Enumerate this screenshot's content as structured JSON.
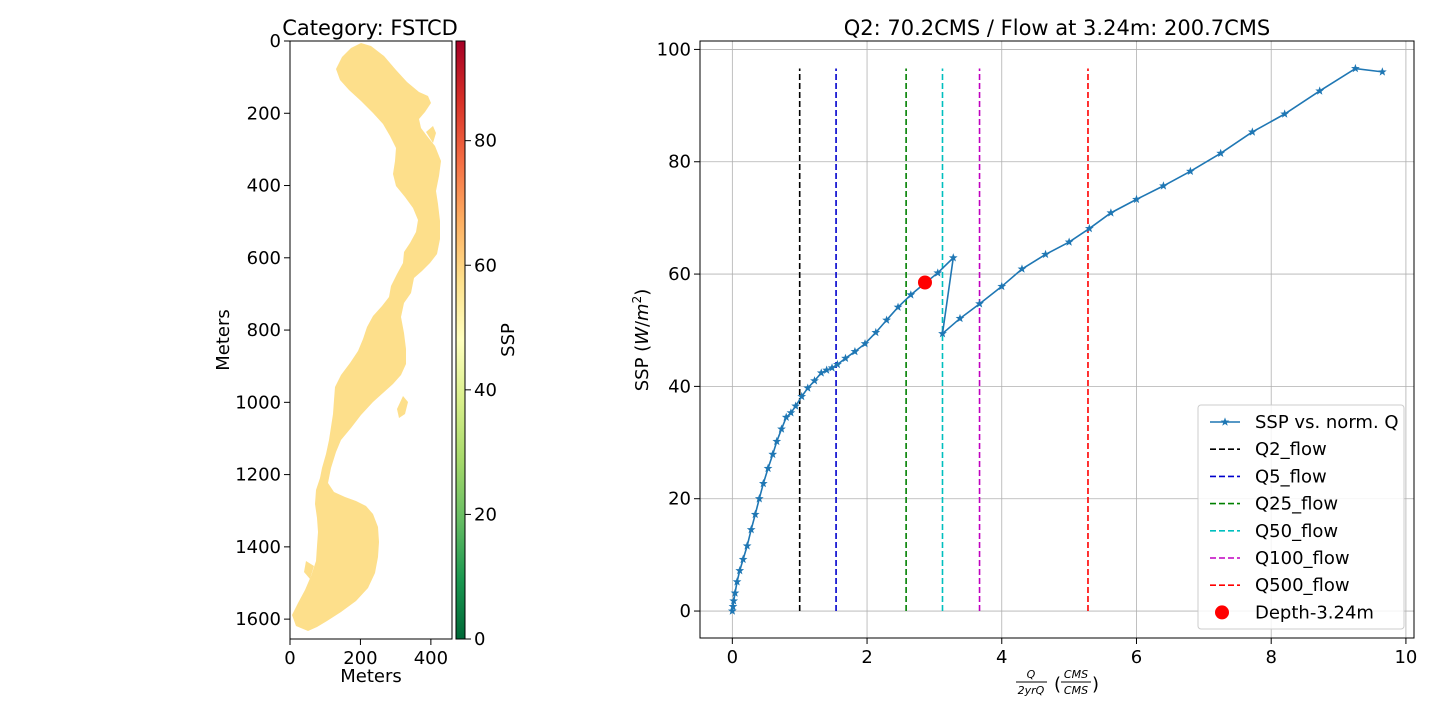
{
  "chart_data": [
    {
      "type": "heatmap",
      "title": "Category: FSTCD",
      "xlabel": "Meters",
      "ylabel": "Meters",
      "xlim": [
        0,
        460
      ],
      "ylim": [
        1655,
        0
      ],
      "x_ticks": [
        0,
        200,
        400
      ],
      "y_ticks": [
        0,
        200,
        400,
        600,
        800,
        1000,
        1200,
        1400,
        1600
      ],
      "colorbar": {
        "label": "SSP",
        "colormap": "RdYlGn_r",
        "range": [
          0,
          96
        ],
        "ticks": [
          0,
          20,
          40,
          60,
          80
        ],
        "stops": [
          "#006837",
          "#1a9850",
          "#66bd63",
          "#a6d96a",
          "#d9ef8b",
          "#ffffbf",
          "#fee08b",
          "#fdae61",
          "#f46d43",
          "#d73027",
          "#a50026"
        ]
      },
      "fill_value": 58.3,
      "fill_color": "#fddf8b",
      "grid": false
    },
    {
      "type": "line",
      "title": "Q2: 70.2CMS / Flow at 3.24m: 200.7CMS",
      "xlabel": "Q/2yrQ (CMS/CMS)",
      "ylabel": "SSP (W/m2)",
      "xlim": [
        -0.48,
        10.12
      ],
      "ylim": [
        -4.8,
        101.5
      ],
      "x_ticks": [
        0,
        2,
        4,
        6,
        8,
        10
      ],
      "y_ticks": [
        0,
        20,
        40,
        60,
        80,
        100
      ],
      "grid": true,
      "legend_position": "lower-right",
      "series": [
        {
          "name": "SSP vs. norm. Q",
          "color": "#1f77b4",
          "marker": "star",
          "x": [
            0.0,
            0.01,
            0.02,
            0.04,
            0.07,
            0.11,
            0.16,
            0.22,
            0.28,
            0.34,
            0.4,
            0.46,
            0.53,
            0.6,
            0.66,
            0.73,
            0.8,
            0.87,
            0.94,
            1.03,
            1.12,
            1.22,
            1.32,
            1.4,
            1.48,
            1.56,
            1.68,
            1.82,
            1.97,
            2.13,
            2.29,
            2.46,
            2.65,
            2.85,
            3.05,
            3.28,
            3.12,
            3.38,
            3.67,
            4.0,
            4.3,
            4.65,
            5.0,
            5.3,
            5.62,
            6.0,
            6.4,
            6.8,
            7.25,
            7.72,
            8.2,
            8.72,
            9.25,
            9.65
          ],
          "y": [
            0.0,
            0.8,
            1.8,
            3.2,
            5.2,
            7.2,
            9.2,
            11.6,
            14.5,
            17.2,
            20.0,
            22.7,
            25.4,
            27.9,
            30.2,
            32.4,
            34.5,
            35.3,
            36.5,
            38.2,
            39.7,
            41.0,
            42.4,
            42.9,
            43.3,
            43.9,
            45.0,
            46.2,
            47.6,
            49.6,
            51.8,
            54.1,
            56.3,
            58.3,
            60.2,
            62.9,
            49.4,
            52.1,
            54.7,
            57.8,
            60.9,
            63.5,
            65.7,
            68.1,
            70.9,
            73.3,
            75.7,
            78.3,
            81.5,
            85.3,
            88.5,
            92.6,
            96.6,
            96.0
          ]
        },
        {
          "name": "Q2_flow",
          "color": "#000000",
          "dash": true,
          "x": [
            1.0,
            1.0
          ],
          "y": [
            0,
            96.6
          ]
        },
        {
          "name": "Q5_flow",
          "color": "#0000cc",
          "dash": true,
          "x": [
            1.54,
            1.54
          ],
          "y": [
            0,
            96.6
          ]
        },
        {
          "name": "Q25_flow",
          "color": "#008000",
          "dash": true,
          "x": [
            2.58,
            2.58
          ],
          "y": [
            0,
            96.6
          ]
        },
        {
          "name": "Q50_flow",
          "color": "#00bfbf",
          "dash": true,
          "x": [
            3.12,
            3.12
          ],
          "y": [
            0,
            96.6
          ]
        },
        {
          "name": "Q100_flow",
          "color": "#bf00bf",
          "dash": true,
          "x": [
            3.67,
            3.67
          ],
          "y": [
            0,
            96.6
          ]
        },
        {
          "name": "Q500_flow",
          "color": "#ff0000",
          "dash": true,
          "x": [
            5.28,
            5.28
          ],
          "y": [
            0,
            96.6
          ]
        },
        {
          "name": "Depth-3.24m",
          "color": "#ff0000",
          "marker": "circle",
          "x": [
            2.86
          ],
          "y": [
            58.5
          ]
        }
      ]
    }
  ]
}
